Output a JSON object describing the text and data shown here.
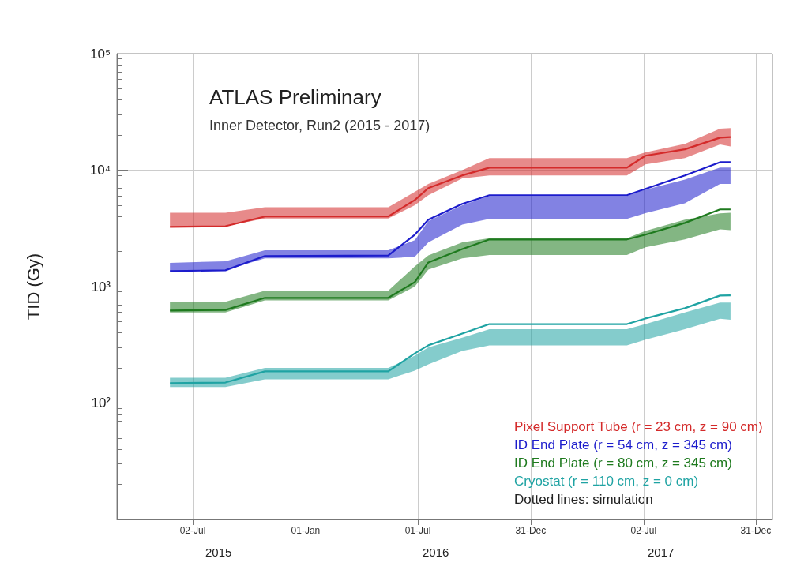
{
  "chart_data": {
    "type": "line",
    "title": "ATLAS Preliminary",
    "subtitle": "Inner Detector, Run2 (2015 - 2017)",
    "ylabel": "TID (Gy)",
    "x": [
      "2015-05-26",
      "2015-08-24",
      "2015-10-27",
      "2016-05-14",
      "2016-06-26",
      "2016-07-18",
      "2016-09-11",
      "2016-10-25",
      "2017-06-05",
      "2017-07-05",
      "2017-09-07",
      "2017-11-03",
      "2017-11-20"
    ],
    "series": [
      {
        "name": "Pixel Support Tube (r = 23 cm, z = 90 cm)",
        "color": "#d42a2a",
        "values": [
          3260,
          3300,
          4000,
          4000,
          5540,
          7010,
          9010,
          10500,
          10500,
          13300,
          15100,
          19000,
          19200
        ],
        "lower": [
          3260,
          3300,
          3850,
          3850,
          5000,
          6100,
          8500,
          9000,
          9000,
          11200,
          12700,
          16600,
          16000
        ],
        "upper": [
          4300,
          4300,
          4800,
          4800,
          6500,
          7600,
          10000,
          12700,
          12700,
          14200,
          16800,
          22700,
          23000
        ]
      },
      {
        "name": "ID End Plate (r = 54 cm, z = 345 cm)",
        "color": "#1c1ccc",
        "values": [
          1360,
          1380,
          1830,
          1850,
          2790,
          3750,
          5130,
          6090,
          6090,
          6900,
          9010,
          11700,
          11700
        ],
        "lower": [
          1360,
          1380,
          1750,
          1750,
          1800,
          2400,
          3400,
          3810,
          3810,
          4270,
          5200,
          7600,
          7600
        ],
        "upper": [
          1600,
          1650,
          2050,
          2050,
          2500,
          3650,
          5000,
          6000,
          6000,
          6800,
          8300,
          10500,
          10500
        ]
      },
      {
        "name": "ID End Plate (r = 80 cm, z = 345 cm)",
        "color": "#1e7a1e",
        "values": [
          622,
          630,
          800,
          800,
          1092,
          1610,
          2100,
          2540,
          2540,
          2790,
          3520,
          4600,
          4600
        ],
        "lower": [
          600,
          600,
          760,
          760,
          1000,
          1400,
          1750,
          1870,
          1870,
          2170,
          2540,
          3100,
          3050
        ],
        "upper": [
          740,
          740,
          920,
          920,
          1490,
          1850,
          2400,
          2600,
          2600,
          3000,
          3750,
          4260,
          4300
        ]
      },
      {
        "name": "Cryostat (r = 110 cm, z = 0 cm)",
        "color": "#1fa3a3",
        "values": [
          148,
          150,
          187,
          187,
          267,
          313,
          395,
          476,
          476,
          532,
          652,
          837,
          840
        ],
        "lower": [
          137,
          137,
          160,
          160,
          190,
          215,
          280,
          313,
          313,
          350,
          430,
          530,
          520
        ],
        "upper": [
          165,
          165,
          200,
          200,
          255,
          300,
          364,
          430,
          430,
          476,
          600,
          730,
          730
        ]
      }
    ],
    "log": "y",
    "ylim": [
      10,
      100000
    ],
    "yticks": [
      {
        "value": 10,
        "label": null
      },
      {
        "value": 100,
        "label": "10²"
      },
      {
        "value": 1000,
        "label": "10³"
      },
      {
        "value": 10000,
        "label": "10⁴"
      },
      {
        "value": 100000,
        "label": "10⁵"
      }
    ],
    "xlim": [
      "2015-03-01",
      "2018-01-27"
    ],
    "xticks": [
      {
        "value": "2015-07-02",
        "label": "02-Jul"
      },
      {
        "value": "2016-01-01",
        "label": "01-Jan"
      },
      {
        "value": "2016-07-01",
        "label": "01-Jul"
      },
      {
        "value": "2016-12-31",
        "label": "31-Dec"
      },
      {
        "value": "2017-07-02",
        "label": "02-Jul"
      },
      {
        "value": "2017-12-31",
        "label": "31-Dec"
      }
    ],
    "grid": true,
    "legend": "bottom right",
    "annotations": [
      "2015",
      "2016",
      "2017",
      "Dotted lines: simulation"
    ]
  }
}
